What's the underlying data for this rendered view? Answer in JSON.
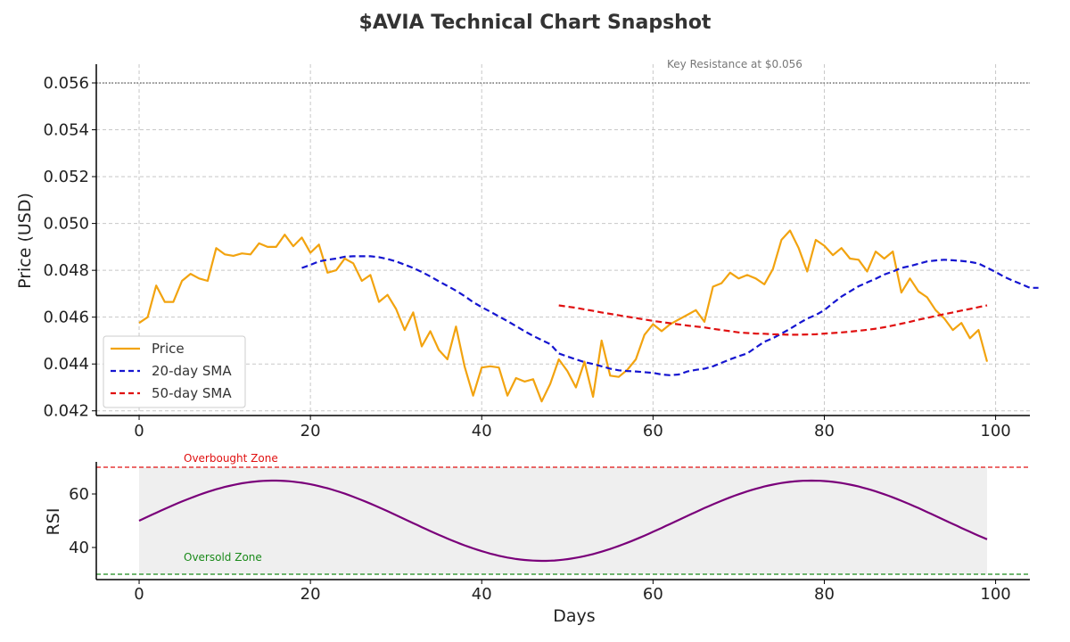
{
  "title": "$AVIA Technical Chart Snapshot",
  "colors": {
    "price": "#f2a30f",
    "sma20": "#1515d0",
    "sma50": "#e01010",
    "rsi": "#7a007a",
    "overbought": "#e01010",
    "oversold": "#1a8a1a",
    "resistance": "#666666",
    "rsi_band": "#efefef"
  },
  "chart_data": [
    {
      "type": "line",
      "ylabel": "Price (USD)",
      "xlim": [
        -5,
        104
      ],
      "ylim": [
        0.0418,
        0.0568
      ],
      "x_ticks": [
        0,
        20,
        40,
        60,
        80,
        100
      ],
      "y_ticks": [
        0.042,
        0.044,
        0.046,
        0.048,
        0.05,
        0.052,
        0.054,
        0.056
      ],
      "grid": true,
      "legend_position": "lower-left",
      "series": [
        {
          "name": "Price",
          "key": "price",
          "x_start": 0,
          "values": [
            0.04575,
            0.046,
            0.04735,
            0.04665,
            0.04665,
            0.04755,
            0.04785,
            0.04765,
            0.04755,
            0.04895,
            0.04868,
            0.04862,
            0.04872,
            0.04868,
            0.04915,
            0.049,
            0.049,
            0.04952,
            0.04903,
            0.0494,
            0.04875,
            0.0491,
            0.0479,
            0.048,
            0.0485,
            0.0483,
            0.04755,
            0.0478,
            0.04665,
            0.04695,
            0.04635,
            0.04545,
            0.0462,
            0.04475,
            0.0454,
            0.0446,
            0.0442,
            0.0456,
            0.0439,
            0.04265,
            0.04385,
            0.0439,
            0.04385,
            0.04265,
            0.0434,
            0.04325,
            0.04335,
            0.0424,
            0.04315,
            0.0442,
            0.0437,
            0.043,
            0.0441,
            0.0426,
            0.045,
            0.0435,
            0.04345,
            0.04375,
            0.0442,
            0.04525,
            0.0457,
            0.0454,
            0.0457,
            0.0459,
            0.0461,
            0.0463,
            0.0458,
            0.0473,
            0.04745,
            0.0479,
            0.04765,
            0.0478,
            0.04765,
            0.0474,
            0.04805,
            0.0493,
            0.0497,
            0.04895,
            0.04795,
            0.0493,
            0.04905,
            0.04865,
            0.04895,
            0.0485,
            0.04845,
            0.04795,
            0.0488,
            0.0485,
            0.0488,
            0.04705,
            0.04765,
            0.0471,
            0.04685,
            0.0463,
            0.04595,
            0.04545,
            0.04575,
            0.0451,
            0.04545,
            0.0441
          ]
        },
        {
          "name": "20-day SMA",
          "key": "sma20",
          "x_start": 19,
          "values": [
            0.0481,
            0.04823,
            0.04838,
            0.04845,
            0.0485,
            0.04858,
            0.0486,
            0.0486,
            0.0486,
            0.04856,
            0.04848,
            0.04838,
            0.04824,
            0.0481,
            0.04793,
            0.04774,
            0.04753,
            0.04733,
            0.04713,
            0.0469,
            0.04664,
            0.04643,
            0.04623,
            0.04603,
            0.04583,
            0.04562,
            0.0454,
            0.0452,
            0.04502,
            0.04485,
            0.04445,
            0.04432,
            0.0442,
            0.04408,
            0.044,
            0.0439,
            0.0438,
            0.04373,
            0.0437,
            0.04368,
            0.04365,
            0.04362,
            0.04355,
            0.04352,
            0.04355,
            0.04368,
            0.04375,
            0.0438,
            0.0439,
            0.04405,
            0.0442,
            0.04433,
            0.04445,
            0.0447,
            0.04495,
            0.0451,
            0.0453,
            0.0455,
            0.04573,
            0.04594,
            0.04609,
            0.0463,
            0.0466,
            0.04688,
            0.0471,
            0.04732,
            0.04748,
            0.04764,
            0.04782,
            0.04795,
            0.0481,
            0.04818,
            0.04828,
            0.04838,
            0.04842,
            0.04845,
            0.04843,
            0.0484,
            0.04836,
            0.04829,
            0.04811,
            0.04793,
            0.04772,
            0.04756,
            0.04741,
            0.04725,
            0.04725
          ]
        },
        {
          "name": "50-day SMA",
          "key": "sma50",
          "x_start": 49,
          "values": [
            0.0465,
            0.04645,
            0.0464,
            0.04633,
            0.04627,
            0.0462,
            0.04614,
            0.04608,
            0.04602,
            0.04596,
            0.0459,
            0.04584,
            0.04579,
            0.04574,
            0.04569,
            0.04564,
            0.0456,
            0.04556,
            0.0455,
            0.04545,
            0.0454,
            0.04535,
            0.04532,
            0.0453,
            0.04529,
            0.04527,
            0.04526,
            0.04525,
            0.04525,
            0.04526,
            0.04527,
            0.0453,
            0.04532,
            0.04535,
            0.04538,
            0.04542,
            0.04546,
            0.04551,
            0.04557,
            0.04564,
            0.04572,
            0.0458,
            0.04589,
            0.04597,
            0.04605,
            0.04613,
            0.0462,
            0.04628,
            0.04635,
            0.04643,
            0.0465
          ]
        }
      ],
      "annotations": [
        {
          "text": "Key Resistance at $0.056",
          "y": 0.056
        }
      ]
    },
    {
      "type": "line",
      "xlabel": "Days",
      "ylabel": "RSI",
      "xlim": [
        -5,
        104
      ],
      "ylim": [
        28,
        72
      ],
      "x_ticks": [
        0,
        20,
        40,
        60,
        80,
        100
      ],
      "y_ticks": [
        40,
        60
      ],
      "grid": false,
      "rsi_model": {
        "center": 50,
        "amplitude": 15,
        "period_days": 62.8,
        "x_start": 0,
        "x_end": 99
      },
      "levels": [
        {
          "text": "Overbought Zone",
          "y": 70,
          "key": "overbought"
        },
        {
          "text": "Oversold Zone",
          "y": 30,
          "key": "oversold"
        }
      ],
      "shaded_band": {
        "y_from": 30,
        "y_to": 70,
        "x_from": 0,
        "x_to": 99
      }
    }
  ]
}
